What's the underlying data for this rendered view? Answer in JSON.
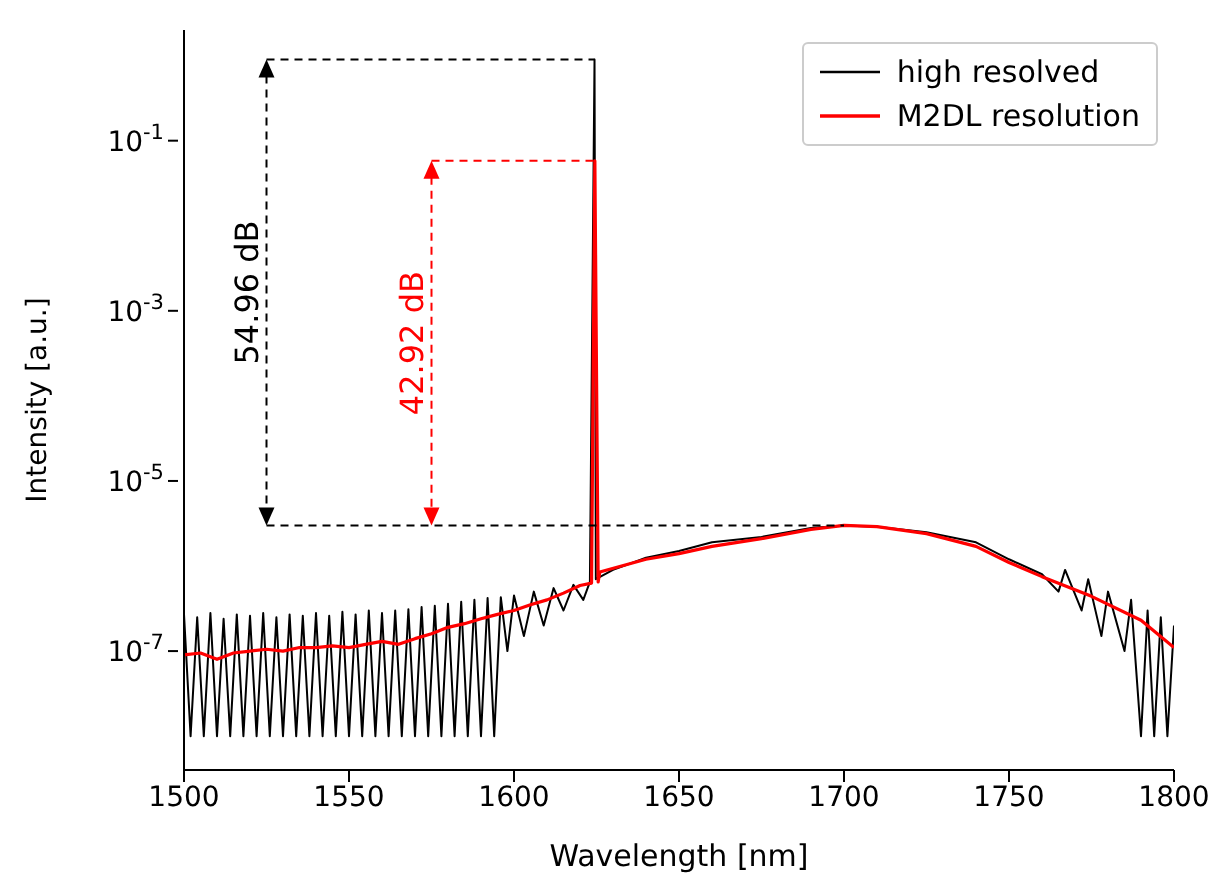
{
  "chart_data": {
    "type": "line",
    "xlabel": "Wavelength [nm]",
    "ylabel": "Intensity [a.u.]",
    "log": "y",
    "xlim": [
      1500,
      1800
    ],
    "xticks": [
      1500,
      1550,
      1600,
      1650,
      1700,
      1750,
      1800
    ],
    "ylim": [
      4e-09,
      2
    ],
    "yticks": [
      {
        "value": 1e-07,
        "label": "10$^{-7}$"
      },
      {
        "value": 1e-05,
        "label": "10$^{-5}$"
      },
      {
        "value": 0.001,
        "label": "10$^{-3}$"
      },
      {
        "value": 0.1,
        "label": "10$^{-1}$"
      }
    ],
    "grid": false,
    "legend": "top right",
    "line_style": "solid",
    "marker": "none",
    "series": [
      {
        "name": "high resolved",
        "color": "#000000",
        "x": [
          1500,
          1502,
          1504,
          1506,
          1508,
          1510,
          1512,
          1514,
          1516,
          1518,
          1520,
          1522,
          1524,
          1526,
          1528,
          1530,
          1532,
          1534,
          1536,
          1538,
          1540,
          1542,
          1544,
          1546,
          1548,
          1550,
          1552,
          1554,
          1556,
          1558,
          1560,
          1562,
          1564,
          1566,
          1568,
          1570,
          1572,
          1574,
          1576,
          1578,
          1580,
          1582,
          1584,
          1586,
          1588,
          1590,
          1592,
          1594,
          1596,
          1598,
          1600,
          1603,
          1606,
          1609,
          1612,
          1615,
          1618,
          1621,
          1623,
          1624.4,
          1624.8,
          1630,
          1640,
          1650,
          1660,
          1675,
          1690,
          1700,
          1710,
          1725,
          1740,
          1750,
          1760,
          1765,
          1767,
          1772,
          1774,
          1778,
          1780,
          1785,
          1787,
          1790,
          1792,
          1794,
          1796,
          1798,
          1800
        ],
        "values": [
          2.7e-07,
          1e-08,
          2.5e-07,
          1e-08,
          2.8e-07,
          1e-08,
          2.4e-07,
          1e-08,
          2.7e-07,
          1e-08,
          2.6e-07,
          1e-08,
          2.8e-07,
          1e-08,
          2.5e-07,
          1e-08,
          2.7e-07,
          1e-08,
          2.6e-07,
          1e-08,
          2.8e-07,
          1e-08,
          2.6e-07,
          1e-08,
          2.9e-07,
          1e-08,
          2.7e-07,
          1e-08,
          3e-07,
          1e-08,
          2.8e-07,
          1e-08,
          3e-07,
          1e-08,
          3.1e-07,
          1e-08,
          3.3e-07,
          1e-08,
          3.4e-07,
          1e-08,
          3.6e-07,
          1e-08,
          3.8e-07,
          1e-08,
          4e-07,
          1e-08,
          4.2e-07,
          1e-08,
          4.3e-07,
          1e-07,
          4.5e-07,
          1.5e-07,
          5e-07,
          2e-07,
          5.5e-07,
          3e-07,
          6e-07,
          4e-07,
          6.5e-07,
          0.9,
          7e-07,
          9e-07,
          1.25e-06,
          1.5e-06,
          1.9e-06,
          2.2e-06,
          2.8e-06,
          3e-06,
          2.9e-06,
          2.5e-06,
          1.9e-06,
          1.2e-06,
          8e-07,
          5e-07,
          9e-07,
          3e-07,
          7e-07,
          1.5e-07,
          5e-07,
          1e-07,
          4e-07,
          1e-08,
          3e-07,
          1e-08,
          2.5e-07,
          1e-08,
          2e-07
        ]
      },
      {
        "name": "M2DL resolution",
        "color": "#ff0000",
        "x": [
          1500,
          1505,
          1510,
          1515,
          1520,
          1525,
          1530,
          1535,
          1540,
          1545,
          1550,
          1555,
          1560,
          1565,
          1570,
          1575,
          1580,
          1585,
          1590,
          1595,
          1600,
          1605,
          1610,
          1615,
          1620,
          1623.5,
          1624.5,
          1625.5,
          1626,
          1640,
          1650,
          1660,
          1675,
          1690,
          1700,
          1710,
          1725,
          1740,
          1750,
          1760,
          1775,
          1790,
          1800
        ],
        "values": [
          9e-08,
          9.5e-08,
          8e-08,
          9.5e-08,
          1e-07,
          1.05e-07,
          1e-07,
          1.1e-07,
          1.1e-07,
          1.15e-07,
          1.1e-07,
          1.2e-07,
          1.3e-07,
          1.2e-07,
          1.4e-07,
          1.6e-07,
          1.9e-07,
          2.1e-07,
          2.4e-07,
          2.7e-07,
          3e-07,
          3.5e-07,
          4e-07,
          4.8e-07,
          5.9e-07,
          6.3e-07,
          0.058,
          6.5e-07,
          8.5e-07,
          1.2e-06,
          1.4e-06,
          1.7e-06,
          2.1e-06,
          2.7e-06,
          3e-06,
          2.9e-06,
          2.4e-06,
          1.7e-06,
          1.1e-06,
          7.5e-07,
          4.4e-07,
          2.3e-07,
          1.1e-07
        ]
      }
    ],
    "ref_lines": [
      {
        "axis": "y",
        "value": 0.9,
        "color": "#000000",
        "line_style": "dashed"
      },
      {
        "axis": "y",
        "value": 0.058,
        "color": "#ff0000",
        "line_style": "dashed"
      },
      {
        "axis": "y",
        "value": 3e-06,
        "color": "#000000",
        "line_style": "dashed"
      }
    ],
    "annotations": [
      "54.96 dB",
      "42.92 dB"
    ]
  }
}
